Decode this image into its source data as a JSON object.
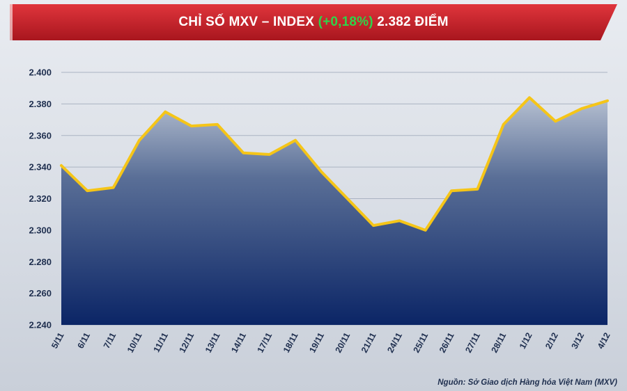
{
  "title": {
    "prefix": "CHỈ SỐ MXV – INDEX ",
    "change": "(+0,18%)",
    "suffix": " 2.382 ĐIỂM"
  },
  "source": "Nguồn: Sở Giao dịch Hàng hóa Việt Nam (MXV)",
  "colors": {
    "header_red": "#c8202a",
    "change_green": "#2fd34a",
    "line": "#f5c518",
    "area_top": "#aeb9cc",
    "area_bottom": "#0d2a6a"
  },
  "chart_data": {
    "type": "area",
    "title": "CHỈ SỐ MXV – INDEX (+0,18%) 2.382 ĐIỂM",
    "xlabel": "",
    "ylabel": "",
    "ylim": [
      2240,
      2400
    ],
    "yticks": [
      2240,
      2260,
      2280,
      2300,
      2320,
      2340,
      2360,
      2380,
      2400
    ],
    "ytick_labels": [
      "2.240",
      "2.260",
      "2.280",
      "2.300",
      "2.320",
      "2.340",
      "2.360",
      "2.380",
      "2.400"
    ],
    "grid": true,
    "legend": "none",
    "categories": [
      "5/11",
      "6/11",
      "7/11",
      "10/11",
      "11/11",
      "12/11",
      "13/11",
      "14/11",
      "17/11",
      "18/11",
      "19/11",
      "20/11",
      "21/11",
      "24/11",
      "25/11",
      "26/11",
      "27/11",
      "28/11",
      "1/12",
      "2/12",
      "3/12",
      "4/12"
    ],
    "values": [
      2341,
      2325,
      2327,
      2357,
      2375,
      2366,
      2367,
      2349,
      2348,
      2357,
      2337,
      2320,
      2303,
      2306,
      2300,
      2325,
      2326,
      2367,
      2384,
      2369,
      2377,
      2382
    ]
  }
}
